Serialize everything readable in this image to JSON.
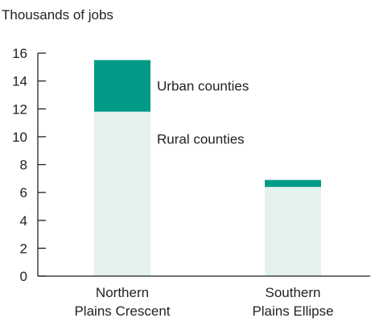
{
  "chart_data": {
    "type": "bar",
    "stacked": true,
    "y_unit_label": "Thousands of jobs",
    "xlabel": "",
    "ylabel": "",
    "ylim": [
      0,
      16
    ],
    "yticks": [
      0,
      2,
      4,
      6,
      8,
      10,
      12,
      14,
      16
    ],
    "grid": false,
    "categories": [
      [
        "Northern",
        "Plains Crescent"
      ],
      [
        "Southern",
        "Plains Ellipse"
      ]
    ],
    "series": [
      {
        "name": "Rural counties",
        "color": "#e3f1ef",
        "values": [
          11.8,
          6.4
        ]
      },
      {
        "name": "Urban counties",
        "color": "#009a87",
        "values": [
          3.7,
          0.5
        ]
      }
    ],
    "annotations": [
      {
        "text": "Urban counties",
        "series": "Urban counties",
        "category_index": 0
      },
      {
        "text": "Rural counties",
        "series": "Rural counties",
        "category_index": 0
      }
    ]
  }
}
